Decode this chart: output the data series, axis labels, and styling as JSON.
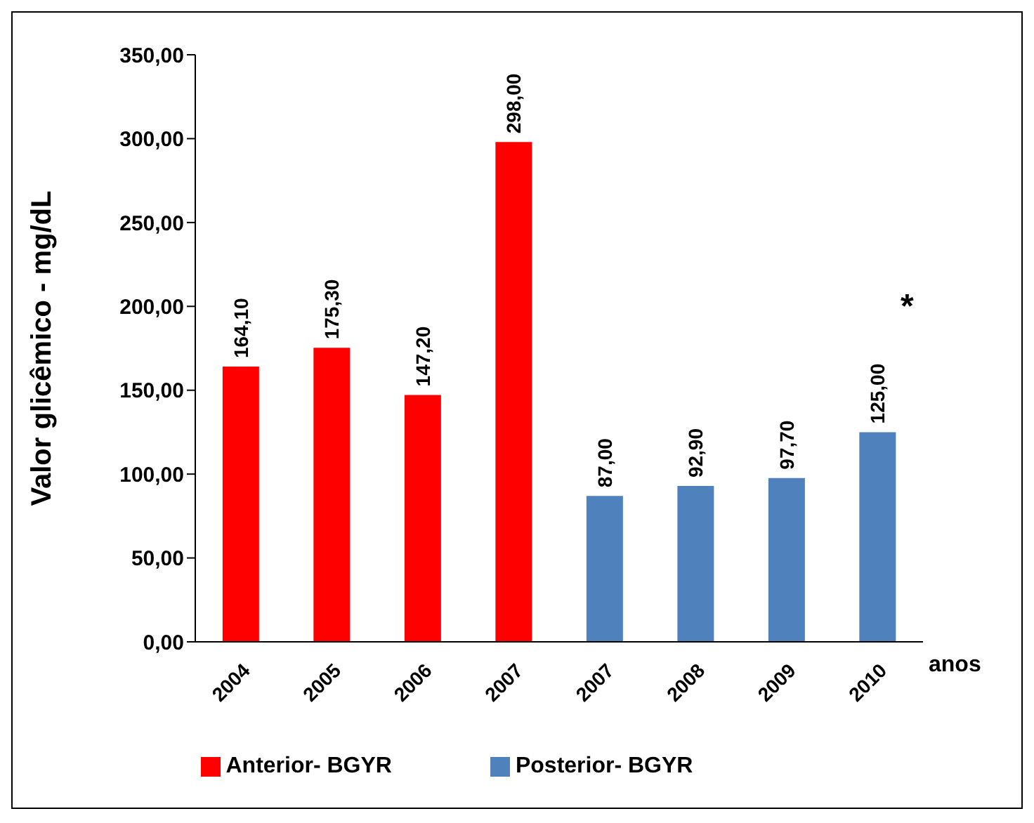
{
  "chart_data": {
    "type": "bar",
    "stacked": true,
    "ylabel": "Valor glicêmico - mg/dL",
    "xlabel": "anos",
    "categories": [
      "2004",
      "2005",
      "2006",
      "2007",
      "2007",
      "2008",
      "2009",
      "2010"
    ],
    "series": [
      {
        "name": "Anterior- BGYR",
        "color": "#ff0000",
        "values": [
          164.1,
          175.3,
          147.2,
          298.0,
          null,
          null,
          null,
          null
        ],
        "value_labels": [
          "164,10",
          "175,30",
          "147,20",
          "298,00",
          null,
          null,
          null,
          null
        ]
      },
      {
        "name": "Posterior- BGYR",
        "color": "#4f81bd",
        "values": [
          null,
          null,
          null,
          null,
          87.0,
          92.9,
          97.7,
          125.0
        ],
        "value_labels": [
          null,
          null,
          null,
          null,
          "87,00",
          "92,90",
          "97,70",
          "125,00"
        ]
      }
    ],
    "ylim": [
      0,
      350
    ],
    "yticks": [
      {
        "value": 0,
        "label": "0,00"
      },
      {
        "value": 50,
        "label": "50,00"
      },
      {
        "value": 100,
        "label": "100,00"
      },
      {
        "value": 150,
        "label": "150,00"
      },
      {
        "value": 200,
        "label": "200,00"
      },
      {
        "value": 250,
        "label": "250,00"
      },
      {
        "value": 300,
        "label": "300,00"
      },
      {
        "value": 350,
        "label": "350,00"
      }
    ],
    "annotations": [
      "*"
    ],
    "legend": "bottom",
    "grid": false
  }
}
